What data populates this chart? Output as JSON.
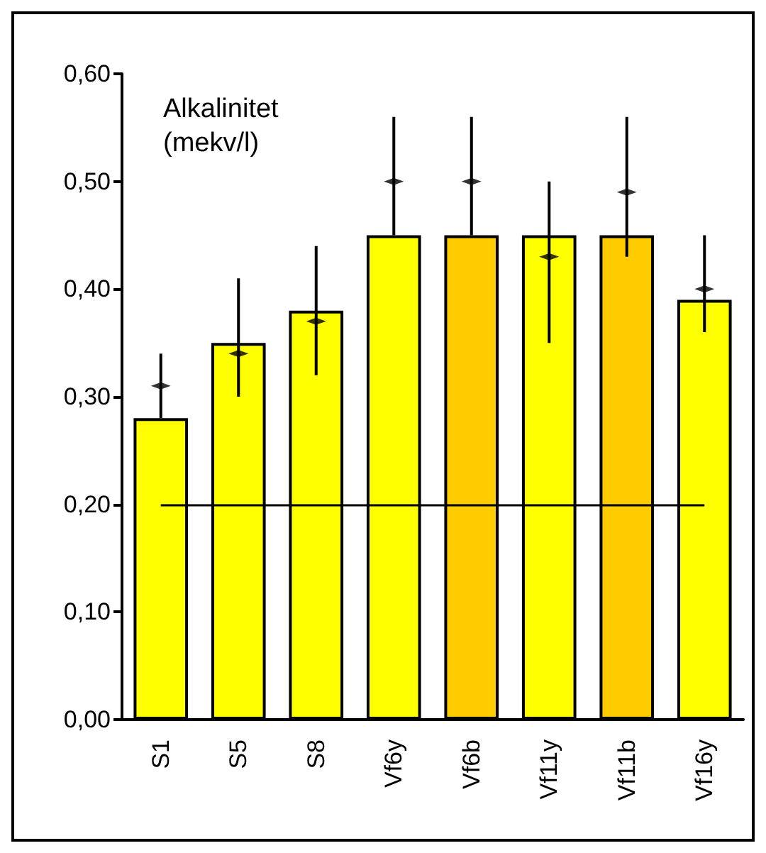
{
  "chart_data": {
    "type": "bar",
    "ylabel": "Alkalinitet (mekv/l)",
    "categories": [
      "S1",
      "S5",
      "S8",
      "Vf6y",
      "Vf6b",
      "Vf11y",
      "Vf11b",
      "Vf16y"
    ],
    "series": [
      {
        "colors": [
          "#ffff00",
          "#ffff00",
          "#ffff00",
          "#ffff00",
          "#ffcc00",
          "#ffff00",
          "#ffcc00",
          "#ffff00"
        ],
        "values": [
          0.28,
          0.35,
          0.38,
          0.45,
          0.45,
          0.45,
          0.45,
          0.39
        ],
        "errors": [
          [
            0.28,
            0.34
          ],
          [
            0.3,
            0.41
          ],
          [
            0.32,
            0.44
          ],
          [
            0.45,
            0.56
          ],
          [
            0.45,
            0.56
          ],
          [
            0.35,
            0.5
          ],
          [
            0.43,
            0.56
          ],
          [
            0.36,
            0.45
          ]
        ]
      },
      {
        "type": "scatter",
        "color": "#000000",
        "x": [
          "S1",
          "S5",
          "S8",
          "Vf6y",
          "Vf6b",
          "Vf11y",
          "Vf11b",
          "Vf16y"
        ],
        "values": [
          0.31,
          0.34,
          0.37,
          0.5,
          0.5,
          0.43,
          0.49,
          0.4
        ]
      }
    ],
    "ylim": [
      0,
      0.6
    ],
    "yticks": [
      {
        "value": 0,
        "label": "0,00"
      },
      {
        "value": 0.1,
        "label": "0,10"
      },
      {
        "value": 0.2,
        "label": "0,20"
      },
      {
        "value": 0.3,
        "label": "0,30"
      },
      {
        "value": 0.4,
        "label": "0,40"
      },
      {
        "value": 0.5,
        "label": "0,50"
      },
      {
        "value": 0.6,
        "label": "0,60"
      }
    ],
    "ref_lines": [
      {
        "axis": "y",
        "value": 0.2,
        "color": "#000000"
      }
    ]
  }
}
